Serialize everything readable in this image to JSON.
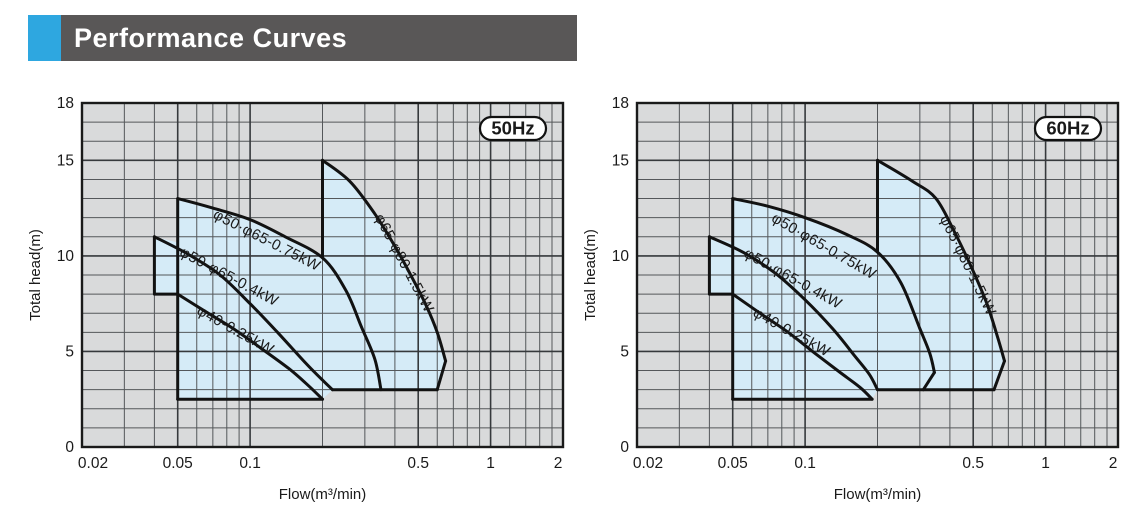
{
  "header": {
    "title": "Performance Curves"
  },
  "colors": {
    "header_bar": "#595757",
    "accent": "#2ea7e0",
    "header_text": "#ffffff",
    "plot_bg": "#d9dadb",
    "region_fill": "#d5ebf7",
    "grid_minor": "#54575a",
    "grid_major": "#36393c",
    "frame": "#1a1a1a",
    "curve": "#121212",
    "text": "#1a1a1a",
    "badge_bg": "#ffffff",
    "badge_border": "#111111"
  },
  "chart_data": [
    {
      "type": "area",
      "badge": "50Hz",
      "xlabel": "Flow(m³/min)",
      "ylabel": "Total head(m)",
      "xlim": [
        0.02,
        2
      ],
      "ylim": [
        0,
        18
      ],
      "x_scale": "log",
      "grid": true,
      "x_major_ticks": [
        {
          "v": 0.02,
          "label": "0.02",
          "dx": 11
        },
        {
          "v": 0.05,
          "label": "0.05"
        },
        {
          "v": 0.1,
          "label": "0.1"
        },
        {
          "v": 0.5,
          "label": "0.5"
        },
        {
          "v": 1,
          "label": "1"
        },
        {
          "v": 2,
          "label": "2",
          "dx": -5
        }
      ],
      "x_minor": [
        0.03,
        0.04,
        0.06,
        0.07,
        0.08,
        0.09,
        0.2,
        0.3,
        0.4,
        0.6,
        0.7,
        0.8,
        0.9,
        1.2,
        1.4,
        1.6,
        1.8
      ],
      "y_major": [
        0,
        5,
        10,
        15,
        18
      ],
      "y_minor": [
        1,
        2,
        3,
        4,
        6,
        7,
        8,
        9,
        11,
        12,
        13,
        14,
        16,
        17
      ],
      "series_names": [
        "φ40-0.25kW",
        "φ50·φ65-0.4kW",
        "φ50·φ65-0.75kW",
        "φ65·φ80-1.5kW"
      ],
      "fill": [
        {
          "smooth": false,
          "pts": [
            [
              0.05,
              2.5
            ],
            [
              0.05,
              8
            ],
            [
              0.04,
              8
            ],
            [
              0.04,
              11
            ],
            [
              0.05,
              10.7
            ],
            [
              0.05,
              13
            ]
          ]
        },
        {
          "smooth": true,
          "pts": [
            [
              0.05,
              13
            ],
            [
              0.07,
              12.5
            ],
            [
              0.1,
              11.9
            ],
            [
              0.14,
              11.0
            ],
            [
              0.2,
              9.9
            ]
          ]
        },
        {
          "smooth": false,
          "pts": [
            [
              0.2,
              9.9
            ],
            [
              0.2,
              15
            ]
          ]
        },
        {
          "smooth": true,
          "pts": [
            [
              0.2,
              15
            ],
            [
              0.26,
              13.9
            ],
            [
              0.33,
              12.2
            ],
            [
              0.4,
              10.5
            ],
            [
              0.47,
              8.9
            ],
            [
              0.54,
              7.4
            ],
            [
              0.6,
              6.0
            ],
            [
              0.65,
              4.5
            ]
          ]
        },
        {
          "smooth": false,
          "pts": [
            [
              0.65,
              4.5
            ],
            [
              0.6,
              3
            ],
            [
              0.22,
              3
            ],
            [
              0.2,
              2.5
            ]
          ]
        }
      ],
      "strokes": [
        {
          "smooth": false,
          "pts": [
            [
              0.05,
              2.5
            ],
            [
              0.05,
              13
            ]
          ]
        },
        {
          "smooth": false,
          "pts": [
            [
              0.05,
              8
            ],
            [
              0.04,
              8
            ],
            [
              0.04,
              11
            ]
          ]
        },
        {
          "smooth": true,
          "pts": [
            [
              0.05,
              8
            ],
            [
              0.065,
              7.1
            ],
            [
              0.085,
              6.2
            ],
            [
              0.11,
              5.2
            ],
            [
              0.145,
              4.1
            ],
            [
              0.175,
              3.2
            ],
            [
              0.2,
              2.5
            ]
          ]
        },
        {
          "smooth": true,
          "pts": [
            [
              0.04,
              11
            ],
            [
              0.055,
              10.1
            ],
            [
              0.075,
              9.0
            ],
            [
              0.1,
              7.5
            ],
            [
              0.13,
              6.0
            ],
            [
              0.17,
              4.4
            ],
            [
              0.2,
              3.5
            ],
            [
              0.22,
              3
            ]
          ]
        },
        {
          "smooth": true,
          "pts": [
            [
              0.05,
              13
            ],
            [
              0.07,
              12.5
            ],
            [
              0.1,
              11.9
            ],
            [
              0.14,
              11.0
            ],
            [
              0.2,
              9.9
            ],
            [
              0.25,
              8.2
            ],
            [
              0.29,
              6.3
            ],
            [
              0.33,
              4.6
            ],
            [
              0.35,
              3
            ]
          ]
        },
        {
          "smooth": false,
          "pts": [
            [
              0.2,
              9.9
            ],
            [
              0.2,
              15
            ]
          ]
        },
        {
          "smooth": true,
          "pts": [
            [
              0.2,
              15
            ],
            [
              0.26,
              13.9
            ],
            [
              0.33,
              12.2
            ],
            [
              0.4,
              10.5
            ],
            [
              0.47,
              8.9
            ],
            [
              0.54,
              7.4
            ],
            [
              0.6,
              6.0
            ],
            [
              0.65,
              4.5
            ]
          ]
        },
        {
          "smooth": false,
          "pts": [
            [
              0.65,
              4.5
            ],
            [
              0.6,
              3
            ]
          ]
        },
        {
          "smooth": false,
          "pts": [
            [
              0.05,
              2.5
            ],
            [
              0.2,
              2.5
            ]
          ]
        },
        {
          "smooth": false,
          "pts": [
            [
              0.22,
              3
            ],
            [
              0.6,
              3
            ]
          ]
        }
      ],
      "labels": [
        {
          "text": "φ50·φ65-0.75kW",
          "x": 0.115,
          "y": 10.6,
          "rot": 27
        },
        {
          "text": "φ50·φ65-0.4kW",
          "x": 0.08,
          "y": 8.7,
          "rot": 28
        },
        {
          "text": "φ40-0.25kW",
          "x": 0.085,
          "y": 5.9,
          "rot": 29
        },
        {
          "text": "φ65·φ80-1.5kW",
          "x": 0.42,
          "y": 9.5,
          "rot": 62
        }
      ]
    },
    {
      "type": "area",
      "badge": "60Hz",
      "xlabel": "Flow(m³/min)",
      "ylabel": "Total head(m)",
      "xlim": [
        0.02,
        2
      ],
      "ylim": [
        0,
        18
      ],
      "x_scale": "log",
      "grid": true,
      "x_major_ticks": [
        {
          "v": 0.02,
          "label": "0.02",
          "dx": 11
        },
        {
          "v": 0.05,
          "label": "0.05"
        },
        {
          "v": 0.1,
          "label": "0.1"
        },
        {
          "v": 0.5,
          "label": "0.5"
        },
        {
          "v": 1,
          "label": "1"
        },
        {
          "v": 2,
          "label": "2",
          "dx": -5
        }
      ],
      "x_minor": [
        0.03,
        0.04,
        0.06,
        0.07,
        0.08,
        0.09,
        0.2,
        0.3,
        0.4,
        0.6,
        0.7,
        0.8,
        0.9,
        1.2,
        1.4,
        1.6,
        1.8
      ],
      "y_major": [
        0,
        5,
        10,
        15,
        18
      ],
      "y_minor": [
        1,
        2,
        3,
        4,
        6,
        7,
        8,
        9,
        11,
        12,
        13,
        14,
        16,
        17
      ],
      "series_names": [
        "φ40-0.25kW",
        "φ50·φ65-0.4kW",
        "φ50·φ65-0.75kW",
        "φ65·φ80-1.5kW"
      ],
      "fill": [
        {
          "smooth": false,
          "pts": [
            [
              0.05,
              2.5
            ],
            [
              0.05,
              8
            ],
            [
              0.04,
              8
            ],
            [
              0.04,
              11
            ],
            [
              0.05,
              10.7
            ],
            [
              0.05,
              13
            ]
          ]
        },
        {
          "smooth": true,
          "pts": [
            [
              0.05,
              13
            ],
            [
              0.07,
              12.6
            ],
            [
              0.1,
              12.0
            ],
            [
              0.15,
              11.1
            ],
            [
              0.2,
              10.2
            ]
          ]
        },
        {
          "smooth": false,
          "pts": [
            [
              0.2,
              10.2
            ],
            [
              0.2,
              15
            ]
          ]
        },
        {
          "smooth": true,
          "pts": [
            [
              0.2,
              15
            ],
            [
              0.28,
              13.9
            ],
            [
              0.35,
              13.0
            ],
            [
              0.42,
              11.2
            ],
            [
              0.5,
              9.2
            ],
            [
              0.57,
              7.5
            ],
            [
              0.63,
              5.8
            ],
            [
              0.675,
              4.5
            ]
          ]
        },
        {
          "smooth": false,
          "pts": [
            [
              0.675,
              4.5
            ],
            [
              0.61,
              3
            ],
            [
              0.2,
              3
            ],
            [
              0.19,
              2.5
            ]
          ]
        }
      ],
      "strokes": [
        {
          "smooth": false,
          "pts": [
            [
              0.05,
              2.5
            ],
            [
              0.05,
              13
            ]
          ]
        },
        {
          "smooth": false,
          "pts": [
            [
              0.05,
              8
            ],
            [
              0.04,
              8
            ],
            [
              0.04,
              11
            ]
          ]
        },
        {
          "smooth": true,
          "pts": [
            [
              0.05,
              8
            ],
            [
              0.065,
              7.0
            ],
            [
              0.085,
              6.0
            ],
            [
              0.11,
              4.9
            ],
            [
              0.14,
              3.9
            ],
            [
              0.17,
              3.1
            ],
            [
              0.19,
              2.5
            ]
          ]
        },
        {
          "smooth": true,
          "pts": [
            [
              0.04,
              11
            ],
            [
              0.055,
              10.2
            ],
            [
              0.075,
              9.1
            ],
            [
              0.1,
              7.7
            ],
            [
              0.13,
              6.2
            ],
            [
              0.16,
              4.8
            ],
            [
              0.185,
              3.8
            ],
            [
              0.2,
              3
            ]
          ]
        },
        {
          "smooth": true,
          "pts": [
            [
              0.05,
              13
            ],
            [
              0.07,
              12.6
            ],
            [
              0.1,
              12.0
            ],
            [
              0.15,
              11.1
            ],
            [
              0.2,
              10.2
            ],
            [
              0.25,
              8.6
            ],
            [
              0.3,
              6.2
            ],
            [
              0.33,
              4.9
            ],
            [
              0.345,
              3.9
            ]
          ]
        },
        {
          "smooth": false,
          "pts": [
            [
              0.345,
              3.9
            ],
            [
              0.31,
              3
            ]
          ]
        },
        {
          "smooth": false,
          "pts": [
            [
              0.2,
              10.2
            ],
            [
              0.2,
              15
            ]
          ]
        },
        {
          "smooth": true,
          "pts": [
            [
              0.2,
              15
            ],
            [
              0.28,
              13.9
            ],
            [
              0.35,
              13.0
            ],
            [
              0.42,
              11.2
            ],
            [
              0.5,
              9.2
            ],
            [
              0.57,
              7.5
            ],
            [
              0.63,
              5.8
            ],
            [
              0.675,
              4.5
            ]
          ]
        },
        {
          "smooth": false,
          "pts": [
            [
              0.675,
              4.5
            ],
            [
              0.61,
              3
            ]
          ]
        },
        {
          "smooth": false,
          "pts": [
            [
              0.05,
              2.5
            ],
            [
              0.19,
              2.5
            ]
          ]
        },
        {
          "smooth": false,
          "pts": [
            [
              0.2,
              3
            ],
            [
              0.61,
              3
            ]
          ]
        }
      ],
      "labels": [
        {
          "text": "φ50·φ65-0.75kW",
          "x": 0.117,
          "y": 10.3,
          "rot": 30
        },
        {
          "text": "φ50·φ65-0.4kW",
          "x": 0.087,
          "y": 8.6,
          "rot": 29
        },
        {
          "text": "φ40-0.25kW",
          "x": 0.086,
          "y": 5.8,
          "rot": 29
        },
        {
          "text": "φ65·φ80-1.5kW",
          "x": 0.456,
          "y": 9.4,
          "rot": 64
        }
      ]
    }
  ]
}
